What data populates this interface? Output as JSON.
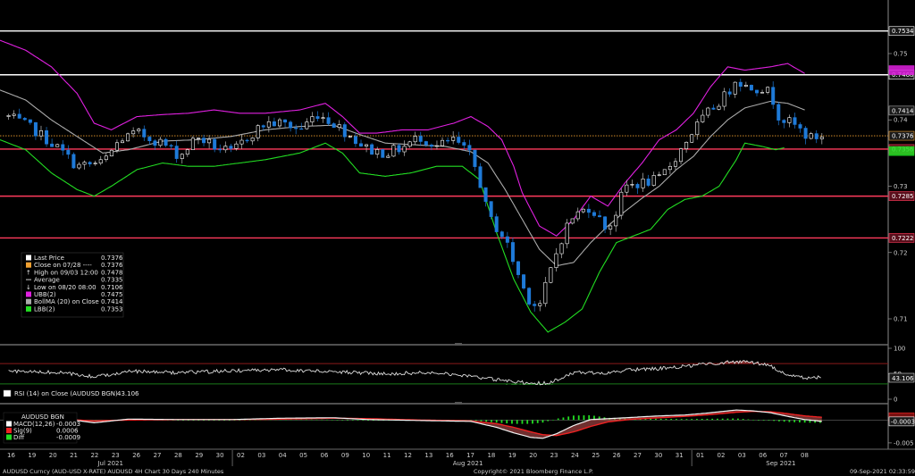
{
  "footer": {
    "security": "AUDUSD Curncy (AUD-USD X-RATE) AUDUSD 4H Chart 30 Days 240 Minutes",
    "copyright": "Copyright© 2021 Bloomberg Finance L.P.",
    "timestamp": "09-Sep-2021 02:33:59"
  },
  "legend": {
    "rows": [
      {
        "label": "Last Price",
        "value": "0.7376",
        "color": "#ffffff",
        "kind": "box"
      },
      {
        "label": "Close on 07/28 ----",
        "value": "0.7376",
        "color": "#f0a030",
        "kind": "box"
      },
      {
        "label": "High on 09/03 12:00",
        "value": "0.7478",
        "color": "#cccccc",
        "kind": "up-arrow"
      },
      {
        "label": "Average",
        "value": "0.7335",
        "color": "#cccccc",
        "kind": "dash"
      },
      {
        "label": "Low on 08/20 08:00",
        "value": "0.7106",
        "color": "#cccccc",
        "kind": "down-arrow"
      },
      {
        "label": "UBB(2)",
        "value": "0.7475",
        "color": "#e020e0",
        "kind": "box"
      },
      {
        "label": "BollMA (20)  on Close",
        "value": "0.7414",
        "color": "#aaaaaa",
        "kind": "box"
      },
      {
        "label": "LBB(2)",
        "value": "0.7353",
        "color": "#22dd22",
        "kind": "box"
      }
    ]
  },
  "rsi_legend": {
    "label": "RSI (14)  on Close (AUDUSD BGN)",
    "value": "43.106",
    "color": "#ffffff"
  },
  "macd_legend": {
    "title": "AUDUSD BGN",
    "rows": [
      {
        "label": "MACD(12,26)",
        "value": "-0.0003",
        "color": "#ffffff"
      },
      {
        "label": "Sig(9)",
        "value": "0.0006",
        "color": "#ee2222"
      },
      {
        "label": "Diff",
        "value": "-0.0009",
        "color": "#22dd22"
      }
    ]
  },
  "colors": {
    "up_candle": "#ffffff",
    "down_candle": "#1e7ad8",
    "upper_band": "#e020e0",
    "middle_band": "#aaaaaa",
    "lower_band": "#22dd22",
    "level_red": "#ff3b5c",
    "level_white": "#ffffff",
    "last_price_line": "#f0a030",
    "macd_line": "#ffffff",
    "signal_line": "#ee2222",
    "diff_bar": "#22dd22"
  },
  "chart_data": [
    {
      "type": "candlestick",
      "panel": "price",
      "ylim": [
        0.7065,
        0.757
      ],
      "y_ticks": [
        "0.75",
        "0.74",
        "0.73",
        "0.72",
        "0.71"
      ],
      "y_tick_values": [
        0.75,
        0.74,
        0.73,
        0.72,
        0.71
      ],
      "horizontal_levels": [
        {
          "value": 0.7534,
          "label": "0.7534",
          "color": "white"
        },
        {
          "value": 0.7468,
          "label": "0.7468",
          "color": "white"
        },
        {
          "value": 0.7356,
          "label": "0.7356",
          "color": "red"
        },
        {
          "value": 0.7285,
          "label": "0.7285",
          "color": "red"
        },
        {
          "value": 0.7222,
          "label": "0.7222",
          "color": "red"
        }
      ],
      "price_tags": [
        {
          "value": 0.7475,
          "label": "",
          "color": "#e020e0"
        },
        {
          "value": 0.7414,
          "label": "0.7414",
          "color": "#aaaaaa"
        },
        {
          "value": 0.7376,
          "label": "0.7376",
          "color": "#f0a030"
        },
        {
          "value": 0.7353,
          "label": "",
          "color": "#22dd22"
        }
      ],
      "last_price": 0.7376,
      "close_anchors": [
        [
          16,
          0.7405
        ],
        [
          17.5,
          0.7385
        ],
        [
          19,
          0.7355
        ],
        [
          20,
          0.733
        ],
        [
          21.5,
          0.7335
        ],
        [
          22.5,
          0.737
        ],
        [
          23.5,
          0.738
        ],
        [
          25,
          0.7365
        ],
        [
          26,
          0.7345
        ],
        [
          27,
          0.7375
        ],
        [
          28,
          0.736
        ],
        [
          29,
          0.735
        ],
        [
          30,
          0.7375
        ],
        [
          31,
          0.7395
        ],
        [
          32,
          0.7395
        ],
        [
          33,
          0.7385
        ],
        [
          34,
          0.741
        ],
        [
          35,
          0.7395
        ],
        [
          36,
          0.7375
        ],
        [
          37,
          0.7355
        ],
        [
          38,
          0.735
        ],
        [
          39,
          0.7358
        ],
        [
          40,
          0.7375
        ],
        [
          41,
          0.736
        ],
        [
          42,
          0.737
        ],
        [
          43,
          0.7345
        ],
        [
          43.5,
          0.731
        ],
        [
          44,
          0.7255
        ],
        [
          45,
          0.722
        ],
        [
          45.5,
          0.7185
        ],
        [
          46,
          0.715
        ],
        [
          46.5,
          0.7125
        ],
        [
          47,
          0.712
        ],
        [
          47.5,
          0.716
        ],
        [
          48,
          0.72
        ],
        [
          48.5,
          0.7235
        ],
        [
          49,
          0.7255
        ],
        [
          50,
          0.727
        ],
        [
          50.5,
          0.725
        ],
        [
          51,
          0.7235
        ],
        [
          51.5,
          0.7262
        ],
        [
          52,
          0.73
        ],
        [
          53,
          0.7305
        ],
        [
          54,
          0.731
        ],
        [
          55,
          0.7345
        ],
        [
          56,
          0.7385
        ],
        [
          57,
          0.7415
        ],
        [
          58,
          0.744
        ],
        [
          58.5,
          0.7465
        ],
        [
          59,
          0.745
        ],
        [
          60,
          0.7448
        ],
        [
          60.5,
          0.744
        ],
        [
          61,
          0.7405
        ],
        [
          62,
          0.739
        ],
        [
          62.8,
          0.7372
        ],
        [
          63.5,
          0.7376
        ]
      ],
      "upper_band_anchors": [
        [
          15.5,
          0.752
        ],
        [
          17,
          0.7505
        ],
        [
          18.5,
          0.748
        ],
        [
          20,
          0.744
        ],
        [
          21,
          0.7395
        ],
        [
          22,
          0.7385
        ],
        [
          23.5,
          0.7405
        ],
        [
          25,
          0.7408
        ],
        [
          26.5,
          0.741
        ],
        [
          28,
          0.7415
        ],
        [
          29.5,
          0.741
        ],
        [
          31,
          0.741
        ],
        [
          33,
          0.7415
        ],
        [
          34.5,
          0.7425
        ],
        [
          35.5,
          0.7405
        ],
        [
          36.5,
          0.738
        ],
        [
          37.5,
          0.738
        ],
        [
          39,
          0.7385
        ],
        [
          40.5,
          0.7385
        ],
        [
          42,
          0.7395
        ],
        [
          43,
          0.7405
        ],
        [
          44,
          0.739
        ],
        [
          44.8,
          0.737
        ],
        [
          45.5,
          0.733
        ],
        [
          46,
          0.729
        ],
        [
          47,
          0.724
        ],
        [
          48,
          0.7225
        ],
        [
          49,
          0.725
        ],
        [
          50,
          0.7285
        ],
        [
          51,
          0.727
        ],
        [
          52,
          0.7305
        ],
        [
          53,
          0.7335
        ],
        [
          54,
          0.737
        ],
        [
          55,
          0.7385
        ],
        [
          56,
          0.741
        ],
        [
          57,
          0.745
        ],
        [
          58,
          0.748
        ],
        [
          59,
          0.7475
        ],
        [
          60.5,
          0.748
        ],
        [
          61.5,
          0.7485
        ],
        [
          62.5,
          0.747
        ]
      ],
      "middle_band_anchors": [
        [
          15.5,
          0.7445
        ],
        [
          17,
          0.743
        ],
        [
          18.5,
          0.74
        ],
        [
          20,
          0.7375
        ],
        [
          21.5,
          0.735
        ],
        [
          23,
          0.7355
        ],
        [
          25,
          0.7368
        ],
        [
          27,
          0.737
        ],
        [
          29,
          0.7375
        ],
        [
          31,
          0.7385
        ],
        [
          33,
          0.739
        ],
        [
          35,
          0.7392
        ],
        [
          36.5,
          0.7378
        ],
        [
          38,
          0.7365
        ],
        [
          40,
          0.7362
        ],
        [
          41.5,
          0.736
        ],
        [
          43,
          0.7352
        ],
        [
          44,
          0.7335
        ],
        [
          45,
          0.7295
        ],
        [
          46,
          0.725
        ],
        [
          47,
          0.7205
        ],
        [
          48,
          0.718
        ],
        [
          49,
          0.7185
        ],
        [
          50,
          0.7215
        ],
        [
          51,
          0.724
        ],
        [
          52,
          0.7262
        ],
        [
          53,
          0.7282
        ],
        [
          54,
          0.73
        ],
        [
          55,
          0.7325
        ],
        [
          56,
          0.7345
        ],
        [
          57,
          0.7375
        ],
        [
          58,
          0.74
        ],
        [
          59,
          0.7418
        ],
        [
          60.5,
          0.7428
        ],
        [
          61.5,
          0.7425
        ],
        [
          62.5,
          0.7415
        ]
      ],
      "lower_band_anchors": [
        [
          15.5,
          0.737
        ],
        [
          17,
          0.7355
        ],
        [
          18.5,
          0.732
        ],
        [
          20,
          0.7295
        ],
        [
          21,
          0.7285
        ],
        [
          22,
          0.73
        ],
        [
          23.5,
          0.7325
        ],
        [
          25,
          0.7335
        ],
        [
          26.5,
          0.733
        ],
        [
          28,
          0.733
        ],
        [
          29.5,
          0.7335
        ],
        [
          31,
          0.734
        ],
        [
          33,
          0.735
        ],
        [
          34.5,
          0.7365
        ],
        [
          35.5,
          0.735
        ],
        [
          36.5,
          0.732
        ],
        [
          38,
          0.7315
        ],
        [
          39.5,
          0.732
        ],
        [
          41,
          0.733
        ],
        [
          42.5,
          0.733
        ],
        [
          43.5,
          0.731
        ],
        [
          44.5,
          0.723
        ],
        [
          45.5,
          0.716
        ],
        [
          46.5,
          0.711
        ],
        [
          47.5,
          0.708
        ],
        [
          48.5,
          0.7095
        ],
        [
          49.5,
          0.7115
        ],
        [
          50.5,
          0.717
        ],
        [
          51.5,
          0.7215
        ],
        [
          52.5,
          0.7225
        ],
        [
          53.5,
          0.7235
        ],
        [
          54.5,
          0.7265
        ],
        [
          55.5,
          0.728
        ],
        [
          56.5,
          0.7285
        ],
        [
          57.5,
          0.73
        ],
        [
          58.5,
          0.734
        ],
        [
          59,
          0.7365
        ],
        [
          60,
          0.736
        ],
        [
          60.8,
          0.7355
        ],
        [
          61.3,
          0.7358
        ]
      ]
    },
    {
      "type": "line",
      "panel": "rsi",
      "ylim": [
        0,
        100
      ],
      "y_ticks": [
        "100",
        "50",
        "0"
      ],
      "y_tick_values": [
        100,
        50,
        0
      ],
      "overbought": 70,
      "oversold": 30,
      "last_value": 43.106,
      "value_tag": "43.106",
      "anchors": [
        [
          16,
          55
        ],
        [
          19,
          52
        ],
        [
          21,
          44
        ],
        [
          23,
          55
        ],
        [
          26,
          52
        ],
        [
          29,
          56
        ],
        [
          32,
          58
        ],
        [
          35,
          54
        ],
        [
          38,
          50
        ],
        [
          41,
          53
        ],
        [
          43,
          45
        ],
        [
          44.5,
          38
        ],
        [
          46,
          33
        ],
        [
          47.5,
          31
        ],
        [
          49,
          52
        ],
        [
          51,
          52
        ],
        [
          52.5,
          58
        ],
        [
          54,
          60
        ],
        [
          56,
          66
        ],
        [
          57,
          70
        ],
        [
          58.5,
          74
        ],
        [
          59.5,
          72
        ],
        [
          60.5,
          66
        ],
        [
          61.5,
          46
        ],
        [
          62.5,
          42
        ],
        [
          63.5,
          43.106
        ]
      ]
    },
    {
      "type": "macd",
      "panel": "macd",
      "ylim": [
        -0.0058,
        0.0028
      ],
      "y_ticks": [
        "0",
        "-0.005"
      ],
      "y_tick_values": [
        0,
        -0.005
      ],
      "value_tags": [
        {
          "value": 0.0006,
          "label": "",
          "color": "#ee2222"
        },
        {
          "value": -0.0003,
          "label": "-0.0003",
          "color": "#ffffff"
        }
      ],
      "macd_anchors": [
        [
          16,
          -0.0002
        ],
        [
          19,
          0.0004
        ],
        [
          21,
          -0.0006
        ],
        [
          23,
          0.0002
        ],
        [
          26,
          0.0001
        ],
        [
          29,
          0.0001
        ],
        [
          32,
          0.0004
        ],
        [
          35,
          0.0005
        ],
        [
          37,
          0.0001
        ],
        [
          40,
          -0.0001
        ],
        [
          43,
          -0.0003
        ],
        [
          44.5,
          -0.0016
        ],
        [
          45.5,
          -0.0028
        ],
        [
          46.5,
          -0.0038
        ],
        [
          47.2,
          -0.004
        ],
        [
          48,
          -0.003
        ],
        [
          49,
          -0.0012
        ],
        [
          50,
          0.0001
        ],
        [
          51,
          0.0003
        ],
        [
          52.5,
          0.0006
        ],
        [
          54,
          0.0009
        ],
        [
          55.5,
          0.0011
        ],
        [
          57,
          0.0016
        ],
        [
          58.5,
          0.0022
        ],
        [
          59.5,
          0.002
        ],
        [
          60.5,
          0.0016
        ],
        [
          61.5,
          0.0008
        ],
        [
          62.5,
          0.0001
        ],
        [
          63.5,
          -0.0003
        ]
      ],
      "signal_anchors": [
        [
          16,
          0.0
        ],
        [
          19,
          0.0002
        ],
        [
          21,
          -0.0002
        ],
        [
          23,
          0.0
        ],
        [
          26,
          0.0001
        ],
        [
          29,
          0.0001
        ],
        [
          32,
          0.0002
        ],
        [
          35,
          0.0004
        ],
        [
          37,
          0.0003
        ],
        [
          40,
          0.0
        ],
        [
          43,
          -0.0002
        ],
        [
          44.5,
          -0.0008
        ],
        [
          45.5,
          -0.0016
        ],
        [
          46.5,
          -0.0026
        ],
        [
          47.2,
          -0.0032
        ],
        [
          48,
          -0.0034
        ],
        [
          49,
          -0.0026
        ],
        [
          50,
          -0.0014
        ],
        [
          51,
          -0.0004
        ],
        [
          52.5,
          0.0002
        ],
        [
          54,
          0.0005
        ],
        [
          55.5,
          0.0008
        ],
        [
          57,
          0.0012
        ],
        [
          58.5,
          0.0017
        ],
        [
          59.5,
          0.0019
        ],
        [
          60.5,
          0.0018
        ],
        [
          61.5,
          0.0014
        ],
        [
          62.5,
          0.0009
        ],
        [
          63.5,
          0.0006
        ]
      ]
    }
  ],
  "x_axis": {
    "day_labels": [
      "16",
      "19",
      "20",
      "21",
      "22",
      "23",
      "26",
      "27",
      "28",
      "29",
      "30",
      "02",
      "03",
      "04",
      "05",
      "06",
      "09",
      "10",
      "11",
      "12",
      "13",
      "16",
      "17",
      "18",
      "19",
      "20",
      "23",
      "24",
      "25",
      "26",
      "27",
      "30",
      "31",
      "01",
      "02",
      "03",
      "06",
      "07",
      "08"
    ],
    "month_labels": [
      {
        "label": "Jul 2021",
        "day_index": 4
      },
      {
        "label": "Aug 2021",
        "day_index": 21
      },
      {
        "label": "Sep 2021",
        "day_index": 36
      }
    ]
  }
}
